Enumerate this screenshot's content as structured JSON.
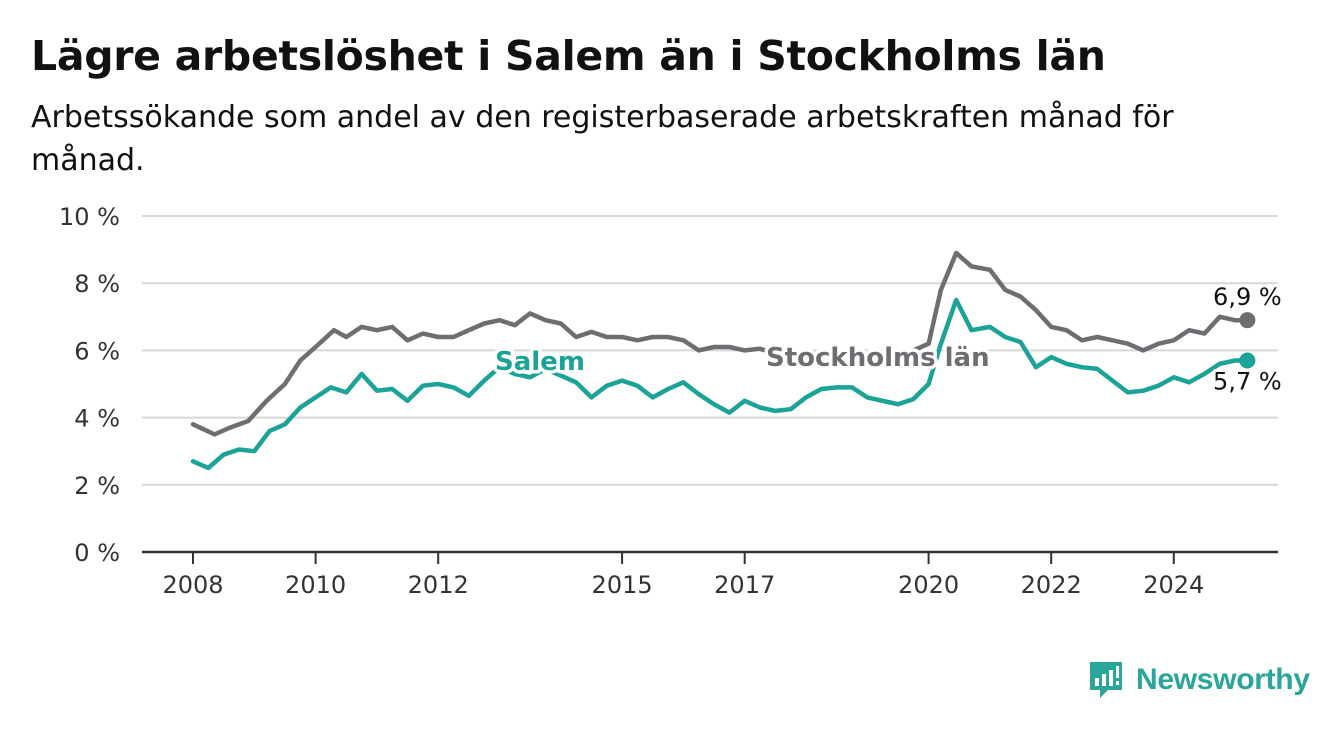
{
  "title": "Lägre arbetslöshet i Salem än i Stockholms län",
  "subtitle": "Arbetssökande som andel av den registerbaserade arbetskraften månad för månad.",
  "logo": {
    "text": "Newsworthy",
    "icon": "bar-chart-logo-icon"
  },
  "colors": {
    "salem": "#1aa396",
    "stockholm": "#6e6d72",
    "grid": "#d8d8d8",
    "axis": "#333333"
  },
  "chart_data": {
    "type": "line",
    "ylim": [
      0,
      10
    ],
    "xlim": [
      2008.0,
      2025.9
    ],
    "yticks": [
      0,
      2,
      4,
      6,
      8,
      10
    ],
    "ytick_labels": [
      "0 %",
      "2 %",
      "4 %",
      "6 %",
      "8 %",
      "10 %"
    ],
    "xticks": [
      2008,
      2010,
      2012,
      2015,
      2017,
      2020,
      2022,
      2024
    ],
    "xtick_labels": [
      "2008",
      "2010",
      "2012",
      "2015",
      "2017",
      "2020",
      "2022",
      "2024"
    ],
    "series": [
      {
        "name": "Stockholms län",
        "color": "#6e6d72",
        "end_label": "6,9 %",
        "points": [
          [
            2008.0,
            3.8
          ],
          [
            2008.35,
            3.5
          ],
          [
            2008.6,
            3.7
          ],
          [
            2008.9,
            3.9
          ],
          [
            2009.2,
            4.5
          ],
          [
            2009.5,
            5.0
          ],
          [
            2009.75,
            5.7
          ],
          [
            2010.0,
            6.1
          ],
          [
            2010.3,
            6.6
          ],
          [
            2010.5,
            6.4
          ],
          [
            2010.75,
            6.7
          ],
          [
            2011.0,
            6.6
          ],
          [
            2011.25,
            6.7
          ],
          [
            2011.5,
            6.3
          ],
          [
            2011.75,
            6.5
          ],
          [
            2012.0,
            6.4
          ],
          [
            2012.25,
            6.4
          ],
          [
            2012.5,
            6.6
          ],
          [
            2012.75,
            6.8
          ],
          [
            2013.0,
            6.9
          ],
          [
            2013.25,
            6.75
          ],
          [
            2013.5,
            7.1
          ],
          [
            2013.75,
            6.9
          ],
          [
            2014.0,
            6.8
          ],
          [
            2014.25,
            6.4
          ],
          [
            2014.5,
            6.55
          ],
          [
            2014.75,
            6.4
          ],
          [
            2015.0,
            6.4
          ],
          [
            2015.25,
            6.3
          ],
          [
            2015.5,
            6.4
          ],
          [
            2015.75,
            6.4
          ],
          [
            2016.0,
            6.3
          ],
          [
            2016.25,
            6.0
          ],
          [
            2016.5,
            6.1
          ],
          [
            2016.75,
            6.1
          ],
          [
            2017.0,
            6.0
          ],
          [
            2017.25,
            6.05
          ],
          [
            2017.5,
            5.9
          ],
          [
            2017.75,
            5.95
          ],
          [
            2018.0,
            5.9
          ],
          [
            2018.25,
            5.9
          ],
          [
            2018.5,
            5.8
          ],
          [
            2018.75,
            5.85
          ],
          [
            2019.0,
            5.8
          ],
          [
            2019.25,
            5.9
          ],
          [
            2019.5,
            5.85
          ],
          [
            2019.75,
            6.0
          ],
          [
            2020.0,
            6.2
          ],
          [
            2020.2,
            7.8
          ],
          [
            2020.45,
            8.9
          ],
          [
            2020.7,
            8.5
          ],
          [
            2021.0,
            8.4
          ],
          [
            2021.25,
            7.8
          ],
          [
            2021.5,
            7.6
          ],
          [
            2021.75,
            7.2
          ],
          [
            2022.0,
            6.7
          ],
          [
            2022.25,
            6.6
          ],
          [
            2022.5,
            6.3
          ],
          [
            2022.75,
            6.4
          ],
          [
            2023.0,
            6.3
          ],
          [
            2023.25,
            6.2
          ],
          [
            2023.5,
            6.0
          ],
          [
            2023.75,
            6.2
          ],
          [
            2024.0,
            6.3
          ],
          [
            2024.25,
            6.6
          ],
          [
            2024.5,
            6.5
          ],
          [
            2024.75,
            7.0
          ],
          [
            2025.0,
            6.9
          ],
          [
            2025.2,
            6.9
          ]
        ]
      },
      {
        "name": "Salem",
        "color": "#1aa396",
        "end_label": "5,7 %",
        "points": [
          [
            2008.0,
            2.7
          ],
          [
            2008.25,
            2.5
          ],
          [
            2008.5,
            2.9
          ],
          [
            2008.75,
            3.05
          ],
          [
            2009.0,
            3.0
          ],
          [
            2009.25,
            3.6
          ],
          [
            2009.5,
            3.8
          ],
          [
            2009.75,
            4.3
          ],
          [
            2010.0,
            4.6
          ],
          [
            2010.25,
            4.9
          ],
          [
            2010.5,
            4.75
          ],
          [
            2010.75,
            5.3
          ],
          [
            2011.0,
            4.8
          ],
          [
            2011.25,
            4.85
          ],
          [
            2011.5,
            4.5
          ],
          [
            2011.75,
            4.95
          ],
          [
            2012.0,
            5.0
          ],
          [
            2012.25,
            4.9
          ],
          [
            2012.5,
            4.65
          ],
          [
            2012.75,
            5.1
          ],
          [
            2013.0,
            5.5
          ],
          [
            2013.25,
            5.3
          ],
          [
            2013.5,
            5.2
          ],
          [
            2013.75,
            5.45
          ],
          [
            2014.0,
            5.25
          ],
          [
            2014.25,
            5.05
          ],
          [
            2014.5,
            4.6
          ],
          [
            2014.75,
            4.95
          ],
          [
            2015.0,
            5.1
          ],
          [
            2015.25,
            4.95
          ],
          [
            2015.5,
            4.6
          ],
          [
            2015.75,
            4.85
          ],
          [
            2016.0,
            5.05
          ],
          [
            2016.25,
            4.7
          ],
          [
            2016.5,
            4.4
          ],
          [
            2016.75,
            4.15
          ],
          [
            2017.0,
            4.5
          ],
          [
            2017.25,
            4.3
          ],
          [
            2017.5,
            4.2
          ],
          [
            2017.75,
            4.25
          ],
          [
            2018.0,
            4.6
          ],
          [
            2018.25,
            4.85
          ],
          [
            2018.5,
            4.9
          ],
          [
            2018.75,
            4.9
          ],
          [
            2019.0,
            4.6
          ],
          [
            2019.25,
            4.5
          ],
          [
            2019.5,
            4.4
          ],
          [
            2019.75,
            4.55
          ],
          [
            2020.0,
            5.0
          ],
          [
            2020.2,
            6.2
          ],
          [
            2020.45,
            7.5
          ],
          [
            2020.7,
            6.6
          ],
          [
            2021.0,
            6.7
          ],
          [
            2021.25,
            6.4
          ],
          [
            2021.5,
            6.25
          ],
          [
            2021.75,
            5.5
          ],
          [
            2022.0,
            5.8
          ],
          [
            2022.25,
            5.6
          ],
          [
            2022.5,
            5.5
          ],
          [
            2022.75,
            5.45
          ],
          [
            2023.0,
            5.1
          ],
          [
            2023.25,
            4.75
          ],
          [
            2023.5,
            4.8
          ],
          [
            2023.75,
            4.95
          ],
          [
            2024.0,
            5.2
          ],
          [
            2024.25,
            5.05
          ],
          [
            2024.5,
            5.3
          ],
          [
            2024.75,
            5.6
          ],
          [
            2025.0,
            5.7
          ],
          [
            2025.2,
            5.7
          ]
        ]
      }
    ]
  }
}
